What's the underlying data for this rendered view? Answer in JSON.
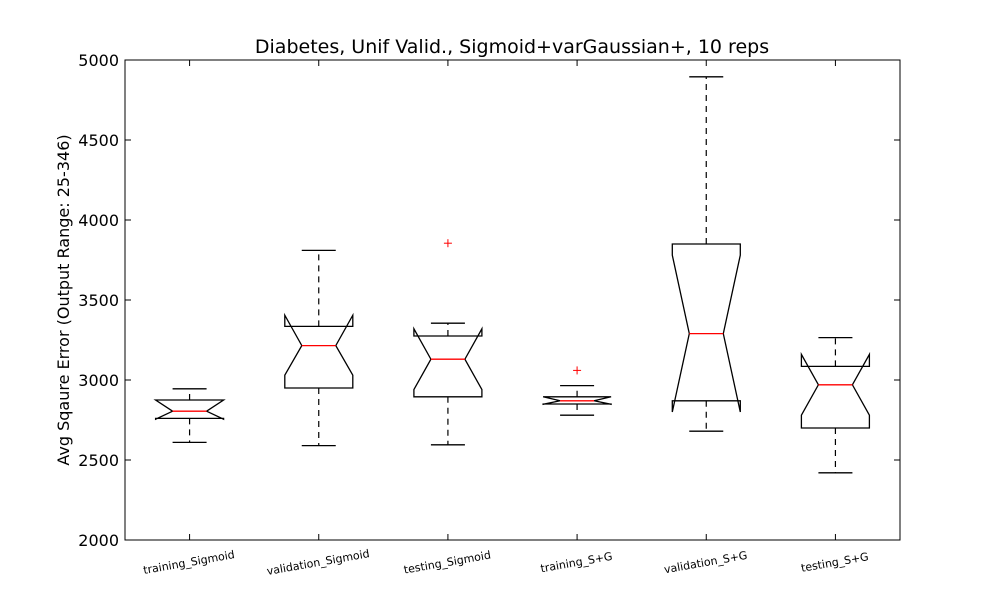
{
  "chart_data": {
    "type": "boxplot",
    "title": "Diabetes, Unif Valid., Sigmoid+varGaussian+, 10 reps",
    "ylabel": "Avg Sqaure Error (Output Range: 25-346)",
    "xlabel": "",
    "ylim": [
      2000,
      5000
    ],
    "yticks": [
      "2000",
      "2500",
      "3000",
      "3500",
      "4000",
      "4500",
      "5000"
    ],
    "notched": true,
    "grid": false,
    "colors": {
      "box": "#000000",
      "median": "#ff0000",
      "outlier": "#ff0000"
    },
    "categories": [
      "training_Sigmoid",
      "validation_Sigmoid",
      "testing_Sigmoid",
      "training_S+G",
      "validation_S+G",
      "testing_S+G"
    ],
    "boxes": [
      {
        "whisker_low": 2610,
        "q1": 2760,
        "median": 2805,
        "q3": 2875,
        "whisker_high": 2945,
        "notch_low": 2755,
        "notch_high": 2875,
        "outliers": []
      },
      {
        "whisker_low": 2590,
        "q1": 2950,
        "median": 3215,
        "q3": 3335,
        "whisker_high": 3810,
        "notch_low": 3030,
        "notch_high": 3405,
        "outliers": []
      },
      {
        "whisker_low": 2595,
        "q1": 2895,
        "median": 3130,
        "q3": 3275,
        "whisker_high": 3355,
        "notch_low": 2940,
        "notch_high": 3320,
        "outliers": [
          3855
        ]
      },
      {
        "whisker_low": 2780,
        "q1": 2850,
        "median": 2870,
        "q3": 2895,
        "whisker_high": 2965,
        "notch_low": 2848,
        "notch_high": 2895,
        "outliers": [
          3060
        ]
      },
      {
        "whisker_low": 2680,
        "q1": 2870,
        "median": 3290,
        "q3": 3850,
        "whisker_high": 4895,
        "notch_low": 2800,
        "notch_high": 3780,
        "outliers": []
      },
      {
        "whisker_low": 2420,
        "q1": 2700,
        "median": 2970,
        "q3": 3085,
        "whisker_high": 3265,
        "notch_low": 2780,
        "notch_high": 3160,
        "outliers": []
      }
    ]
  }
}
